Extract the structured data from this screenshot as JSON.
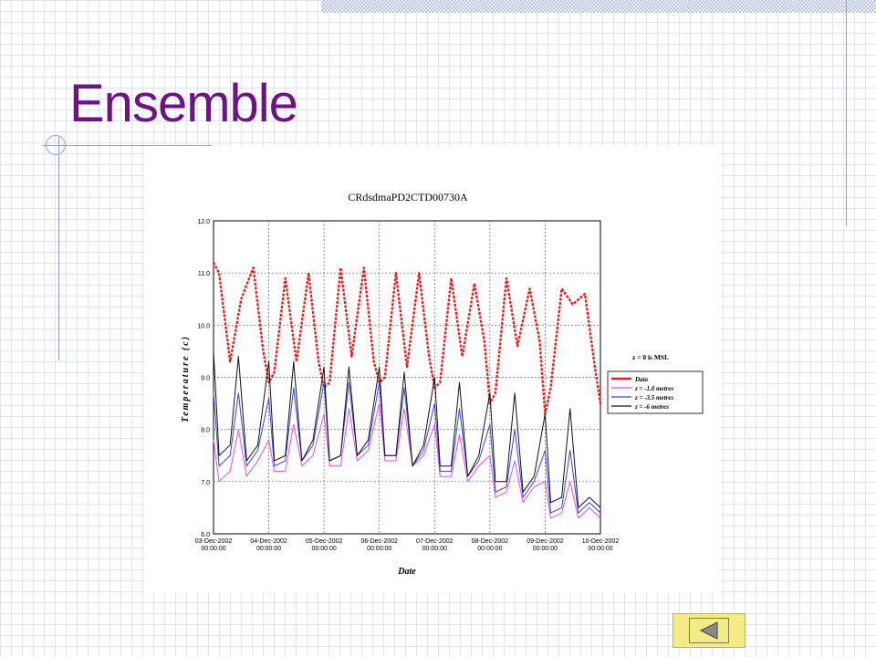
{
  "slide": {
    "title": "Ensemble"
  },
  "nav": {
    "previous_icon": "back-arrow-icon"
  },
  "colors": {
    "title": "#6b1580",
    "data_series": "#ee1c1c",
    "z_minus_1": "#e24fe0",
    "z_minus_3_5": "#3446d6",
    "z_minus_6": "#111111",
    "nav_button": "#f3ec86"
  },
  "chart_data": {
    "type": "line",
    "title": "CRdsdmaPD2CTD00730A",
    "xlabel": "Date",
    "ylabel": "Temperature (c)",
    "ylim": [
      6.0,
      12.0
    ],
    "xlim": [
      0,
      7
    ],
    "y_ticks": [
      "6.0",
      "7.0",
      "8.0",
      "9.0",
      "10.0",
      "11.0",
      "12.0"
    ],
    "x_ticks": [
      {
        "date": "03-Dec-2002",
        "time": "00:00:00"
      },
      {
        "date": "04-Dec-2002",
        "time": "00:00:00"
      },
      {
        "date": "05-Dec-2002",
        "time": "00:00:00"
      },
      {
        "date": "06-Dec-2002",
        "time": "00:00:00"
      },
      {
        "date": "07-Dec-2002",
        "time": "00:00:00"
      },
      {
        "date": "08-Dec-2002",
        "time": "00:00:00"
      },
      {
        "date": "09-Dec-2002",
        "time": "00:00:00"
      },
      {
        "date": "10-Dec-2002",
        "time": "00:00:00"
      }
    ],
    "grid": true,
    "annotation": "z = 0 is MSL",
    "legend_position": "right",
    "series": [
      {
        "name": "Data",
        "color": "#ee1c1c",
        "style": "dashed-thick",
        "x": [
          0,
          0.1,
          0.3,
          0.5,
          0.72,
          0.9,
          1.0,
          1.1,
          1.3,
          1.5,
          1.72,
          1.9,
          2.0,
          2.1,
          2.3,
          2.5,
          2.72,
          2.9,
          3.0,
          3.1,
          3.3,
          3.5,
          3.72,
          3.9,
          4.0,
          4.1,
          4.3,
          4.5,
          4.72,
          4.9,
          5.0,
          5.1,
          5.3,
          5.5,
          5.72,
          5.9,
          6.0,
          6.1,
          6.3,
          6.5,
          6.72,
          6.9,
          7.0
        ],
        "y": [
          11.2,
          11.0,
          9.3,
          10.5,
          11.1,
          9.5,
          8.9,
          9.1,
          10.9,
          9.3,
          11.0,
          9.3,
          8.8,
          8.9,
          11.1,
          9.4,
          11.1,
          9.3,
          8.9,
          9.0,
          11.0,
          9.2,
          11.0,
          9.4,
          8.8,
          8.9,
          10.9,
          9.4,
          10.8,
          9.7,
          8.5,
          8.7,
          10.9,
          9.6,
          10.7,
          9.7,
          8.3,
          8.8,
          10.7,
          10.4,
          10.6,
          9.2,
          8.5
        ]
      },
      {
        "name": "z = -1.0 metres",
        "color": "#e24fe0",
        "x": [
          0,
          0.1,
          0.3,
          0.45,
          0.6,
          0.8,
          1.0,
          1.1,
          1.3,
          1.45,
          1.6,
          1.8,
          2.0,
          2.1,
          2.3,
          2.45,
          2.6,
          2.8,
          3.0,
          3.1,
          3.3,
          3.45,
          3.6,
          3.8,
          4.0,
          4.1,
          4.3,
          4.45,
          4.6,
          4.8,
          5.0,
          5.1,
          5.3,
          5.45,
          5.6,
          5.8,
          6.0,
          6.1,
          6.3,
          6.45,
          6.6,
          6.8,
          7.0
        ],
        "y": [
          7.8,
          7.0,
          7.2,
          8.0,
          7.1,
          7.4,
          7.8,
          7.2,
          7.2,
          8.1,
          7.3,
          7.5,
          8.3,
          7.3,
          7.3,
          8.4,
          7.4,
          7.6,
          8.5,
          7.4,
          7.4,
          8.4,
          7.3,
          7.5,
          8.1,
          7.1,
          7.1,
          7.9,
          7.0,
          7.3,
          7.5,
          6.7,
          6.8,
          7.4,
          6.6,
          6.9,
          7.0,
          6.3,
          6.4,
          7.0,
          6.3,
          6.5,
          6.3
        ]
      },
      {
        "name": "z = -3.5 metres",
        "color": "#3446d6",
        "x": [
          0,
          0.1,
          0.3,
          0.45,
          0.6,
          0.8,
          1.0,
          1.1,
          1.3,
          1.45,
          1.6,
          1.8,
          2.0,
          2.1,
          2.3,
          2.45,
          2.6,
          2.8,
          3.0,
          3.1,
          3.3,
          3.45,
          3.6,
          3.8,
          4.0,
          4.1,
          4.3,
          4.45,
          4.6,
          4.8,
          5.0,
          5.1,
          5.3,
          5.45,
          5.6,
          5.8,
          6.0,
          6.1,
          6.3,
          6.45,
          6.6,
          6.8,
          7.0
        ],
        "y": [
          8.7,
          7.3,
          7.5,
          8.7,
          7.3,
          7.6,
          8.6,
          7.3,
          7.4,
          8.8,
          7.4,
          7.7,
          8.9,
          7.4,
          7.5,
          8.9,
          7.5,
          7.7,
          8.9,
          7.5,
          7.5,
          8.8,
          7.3,
          7.6,
          8.5,
          7.2,
          7.2,
          8.4,
          7.1,
          7.4,
          8.1,
          6.8,
          6.9,
          8.0,
          6.7,
          7.0,
          7.6,
          6.4,
          6.5,
          7.6,
          6.4,
          6.6,
          6.4
        ]
      },
      {
        "name": "z = -6 metres",
        "color": "#111111",
        "x": [
          0,
          0.1,
          0.3,
          0.45,
          0.6,
          0.8,
          1.0,
          1.1,
          1.3,
          1.45,
          1.6,
          1.8,
          2.0,
          2.1,
          2.3,
          2.45,
          2.6,
          2.8,
          3.0,
          3.1,
          3.3,
          3.45,
          3.6,
          3.8,
          4.0,
          4.1,
          4.3,
          4.45,
          4.6,
          4.8,
          5.0,
          5.1,
          5.3,
          5.45,
          5.6,
          5.8,
          6.0,
          6.1,
          6.3,
          6.45,
          6.6,
          6.8,
          7.0
        ],
        "y": [
          9.5,
          7.5,
          7.7,
          9.4,
          7.4,
          7.7,
          9.3,
          7.4,
          7.5,
          9.3,
          7.4,
          7.8,
          9.2,
          7.4,
          7.5,
          9.2,
          7.5,
          7.8,
          9.2,
          7.5,
          7.5,
          9.1,
          7.3,
          7.7,
          9.0,
          7.3,
          7.3,
          8.9,
          7.1,
          7.5,
          8.7,
          7.0,
          7.0,
          8.7,
          6.8,
          7.1,
          8.3,
          6.6,
          6.7,
          8.4,
          6.5,
          6.7,
          6.5
        ]
      }
    ]
  }
}
